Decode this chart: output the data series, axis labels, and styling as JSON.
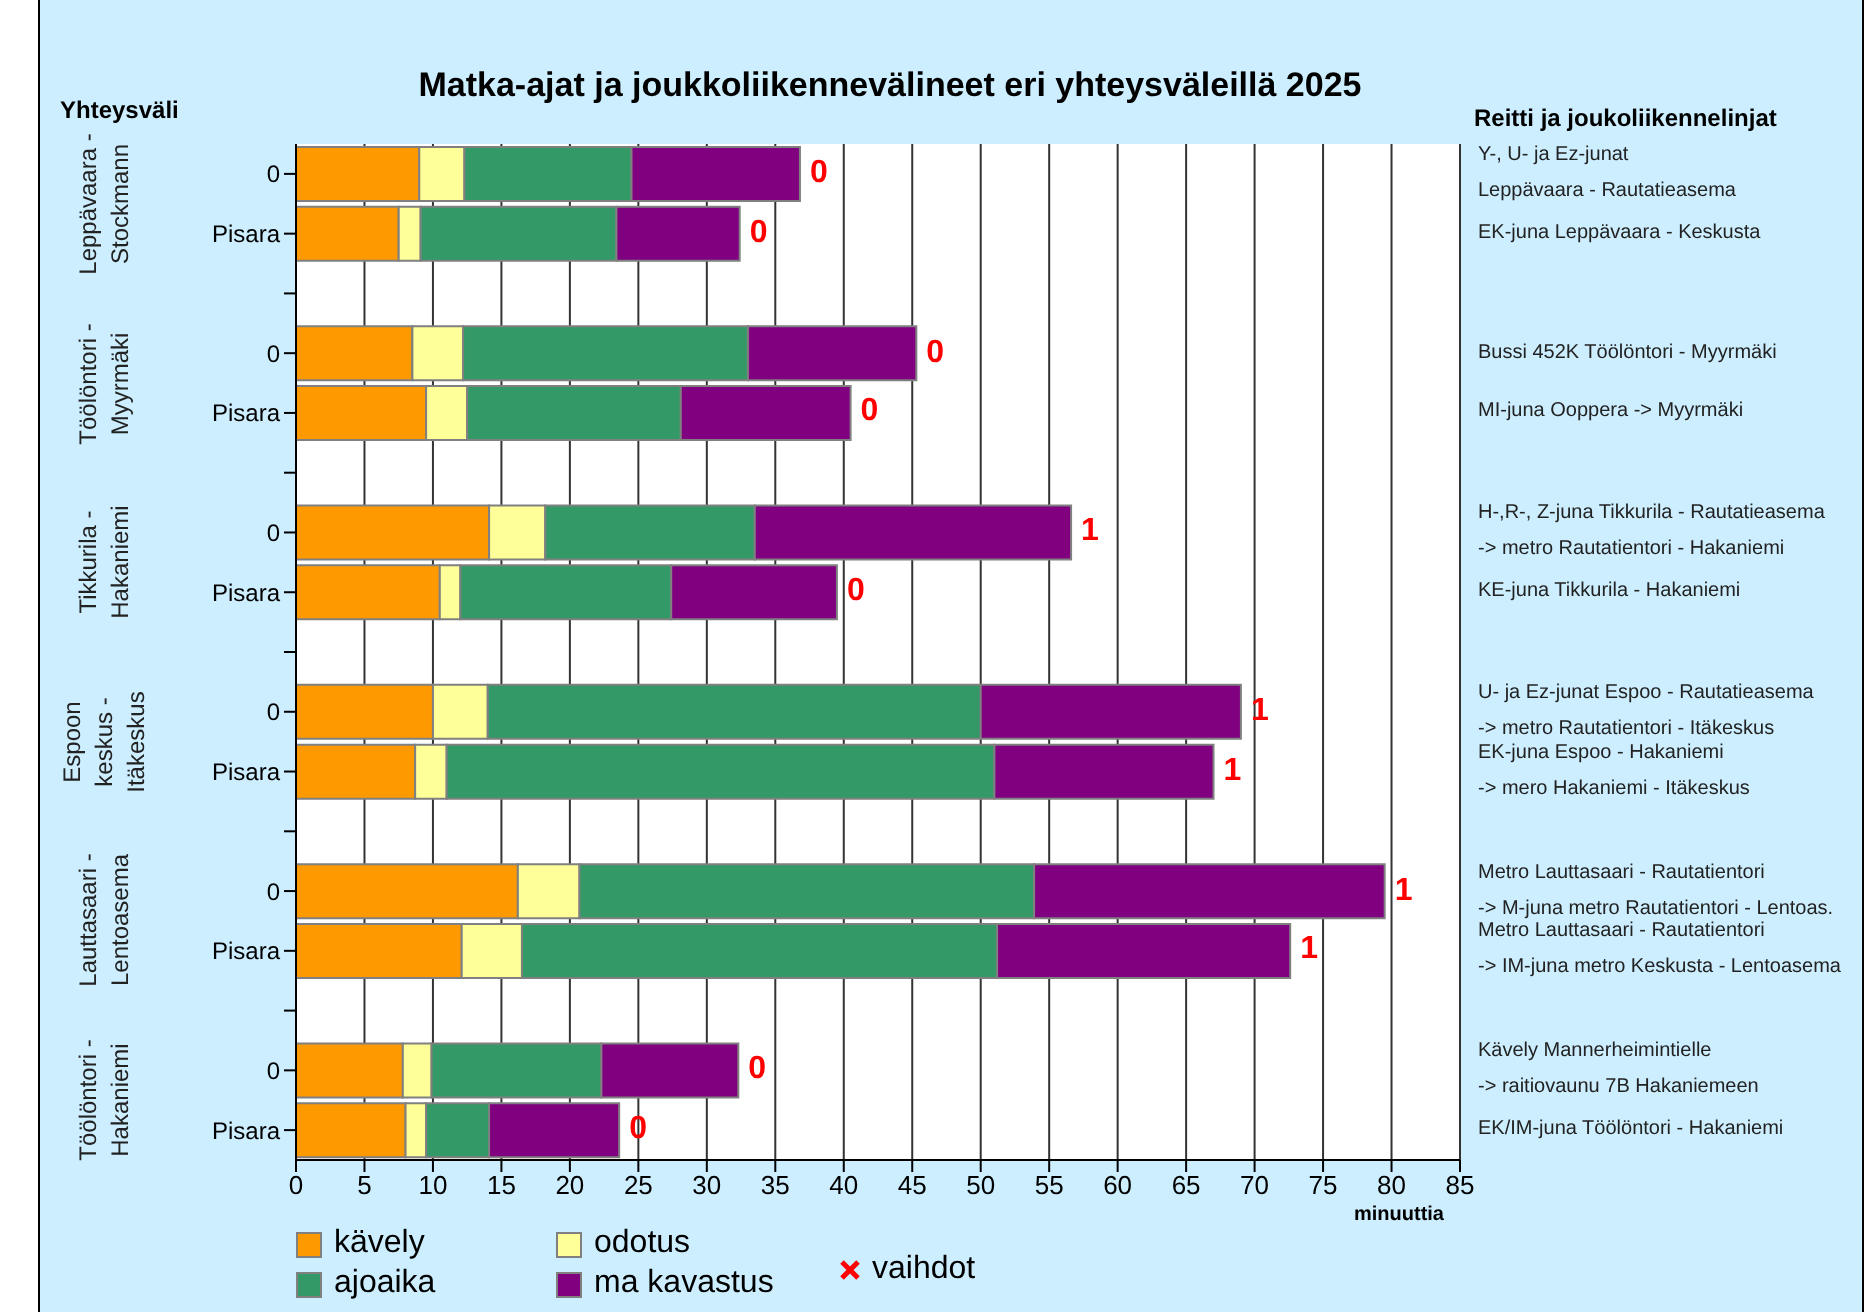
{
  "chart_data": {
    "type": "bar",
    "orientation": "horizontal",
    "stacked": true,
    "title": "Matka-ajat ja joukkoliikennevälineet eri yhteysväleillä 2025",
    "ylabel": "Yhteysväli",
    "xlabel": "minuuttia",
    "categories": [
      "0",
      "Pisara",
      null,
      "0",
      "Pisara",
      null,
      "0",
      "Pisara",
      null,
      "0",
      "Pisara",
      null,
      "0",
      "Pisara",
      null,
      "0",
      "Pisara"
    ],
    "series": [
      {
        "name": "kävely",
        "color": "#ff9900",
        "values": [
          9,
          7.5,
          null,
          8.5,
          9.5,
          null,
          14.1,
          10.5,
          null,
          10,
          8.7,
          null,
          16.2,
          12.1,
          null,
          7.8,
          8
        ]
      },
      {
        "name": "odotus",
        "color": "#ffff99",
        "values": [
          3.3,
          1.6,
          null,
          3.7,
          3,
          null,
          4.1,
          1.5,
          null,
          4,
          2.3,
          null,
          4.5,
          4.4,
          null,
          2.1,
          1.5
        ]
      },
      {
        "name": "ajoaika",
        "color": "#339966",
        "values": [
          12.2,
          14.3,
          null,
          20.8,
          15.6,
          null,
          15.3,
          15.4,
          null,
          36,
          40,
          null,
          33.2,
          34.7,
          null,
          12.4,
          4.6
        ]
      },
      {
        "name": "ma kavastus",
        "color": "#800080",
        "values": [
          12.3,
          9,
          null,
          12.3,
          12.4,
          null,
          23.1,
          12.1,
          null,
          19,
          16,
          null,
          25.6,
          21.4,
          null,
          10,
          9.5
        ]
      }
    ],
    "xlim": [
      0,
      85
    ],
    "xticks": [
      0,
      5,
      10,
      15,
      20,
      25,
      30,
      35,
      40,
      45,
      50,
      55,
      60,
      65,
      70,
      75,
      80,
      85
    ],
    "grid": "x",
    "legend": "bottom",
    "annotations": [
      "Reitti ja joukoliikennelinjat",
      "Leppävaara -\nStockmann",
      "Töölöntori -\nMyyrmäki",
      "Tikkurila -\nHakaniemi",
      "Espoon\nkeskus -\nItäkeskus",
      "Lauttasaari -\nLentoasema",
      "Töölöntori -\nHakaniemi",
      "Y-, U- ja Ez-junat\nLeppävaara - Rautatieasema",
      "EK-juna Leppävaara - Keskusta",
      "Bussi 452K Töölöntori - Myyrmäki",
      "MI-juna Ooppera -> Myyrmäki",
      "H-,R-, Z-juna Tikkurila - Rautatieasema\n-> metro Rautatientori - Hakaniemi",
      "KE-juna Tikkurila - Hakaniemi",
      "U- ja Ez-junat Espoo - Rautatieasema\n-> metro Rautatientori - Itäkeskus",
      "EK-juna Espoo - Hakaniemi\n-> mero Hakaniemi - Itäkeskus",
      "Metro Lauttasaari - Rautatientori\n-> M-juna metro Rautatientori - Lentoas.",
      "Metro Lauttasaari - Rautatientori\n-> IM-juna metro Keskusta - Lentoasema",
      "Kävely Mannerheimintielle\n-> raitiovaunu 7B Hakaniemeen",
      "EK/IM-juna Töölöntori - Hakaniemi",
      "0",
      "0",
      "0",
      "0",
      "1",
      "0",
      "1",
      "1",
      "1",
      "1",
      "0",
      "0",
      "vaihdot"
    ]
  }
}
